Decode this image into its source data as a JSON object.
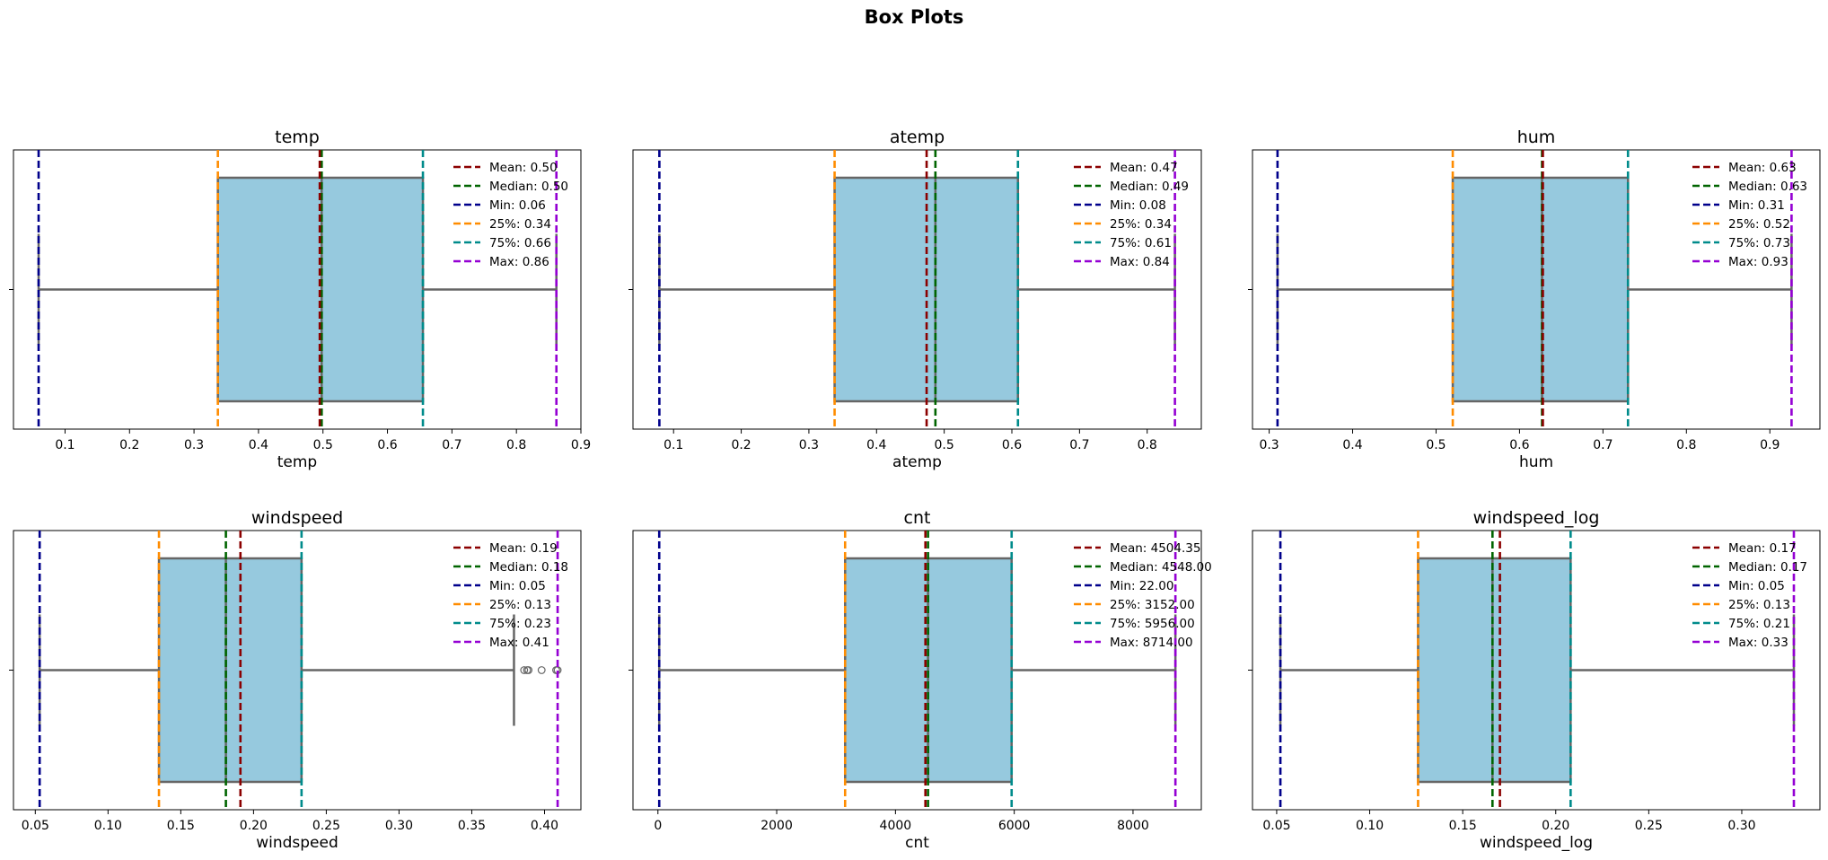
{
  "figure_title": "Box Plots",
  "colors": {
    "box_fill": "#96c9de",
    "box_edge": "#666666",
    "mean": "#8b0000",
    "median": "#006400",
    "min": "#00008b",
    "q25": "#ff8c00",
    "q75": "#008b8b",
    "max": "#9400d3"
  },
  "chart_data": [
    {
      "type": "box",
      "title": "temp",
      "xlabel": "temp",
      "xlim": [
        0.02,
        0.9
      ],
      "xticks": [
        0.1,
        0.2,
        0.3,
        0.4,
        0.5,
        0.6,
        0.7,
        0.8,
        0.9
      ],
      "xtick_labels": [
        "0.1",
        "0.2",
        "0.3",
        "0.4",
        "0.5",
        "0.6",
        "0.7",
        "0.8",
        "0.9"
      ],
      "box": {
        "q1": 0.337,
        "median": 0.498,
        "q3": 0.655,
        "whisker_low": 0.059,
        "whisker_high": 0.862,
        "outliers": []
      },
      "stats": {
        "mean": 0.495,
        "median": 0.498,
        "min": 0.059,
        "q25": 0.337,
        "q75": 0.655,
        "max": 0.862
      },
      "legend": [
        {
          "key": "mean",
          "label": "Mean: 0.50"
        },
        {
          "key": "median",
          "label": "Median: 0.50"
        },
        {
          "key": "min",
          "label": "Min: 0.06"
        },
        {
          "key": "q25",
          "label": "25%: 0.34"
        },
        {
          "key": "q75",
          "label": "75%: 0.66"
        },
        {
          "key": "max",
          "label": "Max: 0.86"
        }
      ]
    },
    {
      "type": "box",
      "title": "atemp",
      "xlabel": "atemp",
      "xlim": [
        0.04,
        0.88
      ],
      "xticks": [
        0.1,
        0.2,
        0.3,
        0.4,
        0.5,
        0.6,
        0.7,
        0.8
      ],
      "xtick_labels": [
        "0.1",
        "0.2",
        "0.3",
        "0.4",
        "0.5",
        "0.6",
        "0.7",
        "0.8"
      ],
      "box": {
        "q1": 0.338,
        "median": 0.487,
        "q3": 0.609,
        "whisker_low": 0.079,
        "whisker_high": 0.841,
        "outliers": []
      },
      "stats": {
        "mean": 0.474,
        "median": 0.487,
        "min": 0.079,
        "q25": 0.338,
        "q75": 0.609,
        "max": 0.841
      },
      "legend": [
        {
          "key": "mean",
          "label": "Mean: 0.47"
        },
        {
          "key": "median",
          "label": "Median: 0.49"
        },
        {
          "key": "min",
          "label": "Min: 0.08"
        },
        {
          "key": "q25",
          "label": "25%: 0.34"
        },
        {
          "key": "q75",
          "label": "75%: 0.61"
        },
        {
          "key": "max",
          "label": "Max: 0.84"
        }
      ]
    },
    {
      "type": "box",
      "title": "hum",
      "xlabel": "hum",
      "xlim": [
        0.28,
        0.96
      ],
      "xticks": [
        0.3,
        0.4,
        0.5,
        0.6,
        0.7,
        0.8,
        0.9
      ],
      "xtick_labels": [
        "0.3",
        "0.4",
        "0.5",
        "0.6",
        "0.7",
        "0.8",
        "0.9"
      ],
      "box": {
        "q1": 0.52,
        "median": 0.627,
        "q3": 0.73,
        "whisker_low": 0.31,
        "whisker_high": 0.926,
        "outliers": []
      },
      "stats": {
        "mean": 0.628,
        "median": 0.627,
        "min": 0.31,
        "q25": 0.52,
        "q75": 0.73,
        "max": 0.926
      },
      "legend": [
        {
          "key": "mean",
          "label": "Mean: 0.63"
        },
        {
          "key": "median",
          "label": "Median: 0.63"
        },
        {
          "key": "min",
          "label": "Min: 0.31"
        },
        {
          "key": "q25",
          "label": "25%: 0.52"
        },
        {
          "key": "q75",
          "label": "75%: 0.73"
        },
        {
          "key": "max",
          "label": "Max: 0.93"
        }
      ]
    },
    {
      "type": "box",
      "title": "windspeed",
      "xlabel": "windspeed",
      "xlim": [
        0.035,
        0.425
      ],
      "xticks": [
        0.05,
        0.1,
        0.15,
        0.2,
        0.25,
        0.3,
        0.35,
        0.4
      ],
      "xtick_labels": [
        "0.05",
        "0.10",
        "0.15",
        "0.20",
        "0.25",
        "0.30",
        "0.35",
        "0.40"
      ],
      "box": {
        "q1": 0.135,
        "median": 0.181,
        "q3": 0.233,
        "whisker_low": 0.053,
        "whisker_high": 0.379,
        "outliers": [
          0.386,
          0.388,
          0.389,
          0.398,
          0.408,
          0.409
        ]
      },
      "stats": {
        "mean": 0.191,
        "median": 0.181,
        "min": 0.053,
        "q25": 0.135,
        "q75": 0.233,
        "max": 0.409
      },
      "legend": [
        {
          "key": "mean",
          "label": "Mean: 0.19"
        },
        {
          "key": "median",
          "label": "Median: 0.18"
        },
        {
          "key": "min",
          "label": "Min: 0.05"
        },
        {
          "key": "q25",
          "label": "25%: 0.13"
        },
        {
          "key": "q75",
          "label": "75%: 0.23"
        },
        {
          "key": "max",
          "label": "Max: 0.41"
        }
      ]
    },
    {
      "type": "box",
      "title": "cnt",
      "xlabel": "cnt",
      "xlim": [
        -420,
        9150
      ],
      "xticks": [
        0,
        2000,
        4000,
        6000,
        8000
      ],
      "xtick_labels": [
        "0",
        "2000",
        "4000",
        "6000",
        "8000"
      ],
      "box": {
        "q1": 3152,
        "median": 4548,
        "q3": 5956,
        "whisker_low": 22,
        "whisker_high": 8714,
        "outliers": []
      },
      "stats": {
        "mean": 4504.35,
        "median": 4548.0,
        "min": 22.0,
        "q25": 3152.0,
        "q75": 5956.0,
        "max": 8714.0
      },
      "legend": [
        {
          "key": "mean",
          "label": "Mean: 4504.35"
        },
        {
          "key": "median",
          "label": "Median: 4548.00"
        },
        {
          "key": "min",
          "label": "Min: 22.00"
        },
        {
          "key": "q25",
          "label": "25%: 3152.00"
        },
        {
          "key": "q75",
          "label": "75%: 5956.00"
        },
        {
          "key": "max",
          "label": "Max: 8714.00"
        }
      ]
    },
    {
      "type": "box",
      "title": "windspeed_log",
      "xlabel": "windspeed_log",
      "xlim": [
        0.037,
        0.342
      ],
      "xticks": [
        0.05,
        0.1,
        0.15,
        0.2,
        0.25,
        0.3
      ],
      "xtick_labels": [
        "0.05",
        "0.10",
        "0.15",
        "0.20",
        "0.25",
        "0.30"
      ],
      "box": {
        "q1": 0.126,
        "median": 0.166,
        "q3": 0.208,
        "whisker_low": 0.052,
        "whisker_high": 0.328,
        "outliers": []
      },
      "stats": {
        "mean": 0.17,
        "median": 0.166,
        "min": 0.052,
        "q25": 0.126,
        "q75": 0.208,
        "max": 0.328
      },
      "legend": [
        {
          "key": "mean",
          "label": "Mean: 0.17"
        },
        {
          "key": "median",
          "label": "Median: 0.17"
        },
        {
          "key": "min",
          "label": "Min: 0.05"
        },
        {
          "key": "q25",
          "label": "25%: 0.13"
        },
        {
          "key": "q75",
          "label": "75%: 0.21"
        },
        {
          "key": "max",
          "label": "Max: 0.33"
        }
      ]
    }
  ]
}
